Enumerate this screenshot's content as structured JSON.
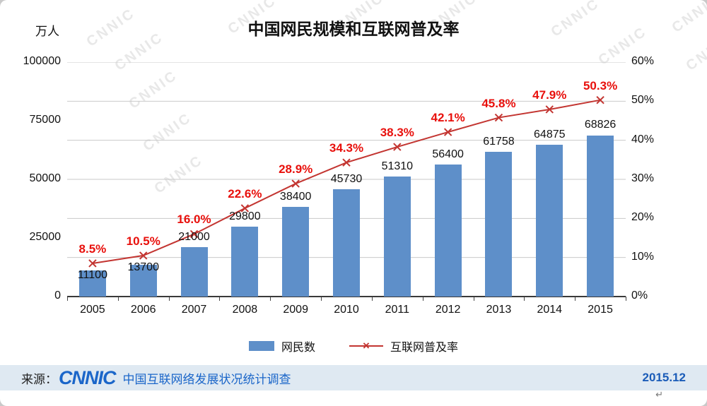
{
  "watermark": "CNNIC",
  "icons": {
    "x_marker": "×"
  },
  "colors": {
    "bar": "#5E8FC9",
    "line": "#C33531",
    "pct_label": "#E8100C",
    "grid": "#C9C9C9",
    "axis": "#3A3A3A",
    "footer_bg": "#DFE9F2",
    "footer_blue": "#1B66C9"
  },
  "legend": [
    {
      "label": "网民数",
      "type": "bar"
    },
    {
      "label": "互联网普及率",
      "type": "line"
    }
  ],
  "source": {
    "label": "来源：",
    "logo": "CNNIC",
    "text": "中国互联网络发展状况统计调查",
    "date": "2015.12",
    "return_mark": "↵"
  },
  "chart_data": {
    "type": "bar+line",
    "title": "中国网民规模和互联网普及率",
    "categories": [
      "2005",
      "2006",
      "2007",
      "2008",
      "2009",
      "2010",
      "2011",
      "2012",
      "2013",
      "2014",
      "2015"
    ],
    "series": [
      {
        "name": "网民数",
        "type": "bar",
        "axis": "left",
        "values": [
          11100,
          13700,
          21000,
          29800,
          38400,
          45730,
          51310,
          56400,
          61758,
          64875,
          68826
        ]
      },
      {
        "name": "互联网普及率",
        "type": "line",
        "axis": "right",
        "values": [
          8.5,
          10.5,
          16.0,
          22.6,
          28.9,
          34.3,
          38.3,
          42.1,
          45.8,
          47.9,
          50.3
        ]
      }
    ],
    "left_axis": {
      "unit": "万人",
      "min": 0,
      "max": 100000,
      "ticks": [
        0,
        25000,
        50000,
        75000,
        100000
      ]
    },
    "right_axis": {
      "min": 0,
      "max": 60,
      "ticks": [
        0,
        10,
        20,
        30,
        40,
        50,
        60
      ],
      "tick_labels": [
        "0%",
        "10%",
        "20%",
        "30%",
        "40%",
        "50%",
        "60%"
      ]
    },
    "grid": "horizontal",
    "legend_position": "bottom"
  }
}
